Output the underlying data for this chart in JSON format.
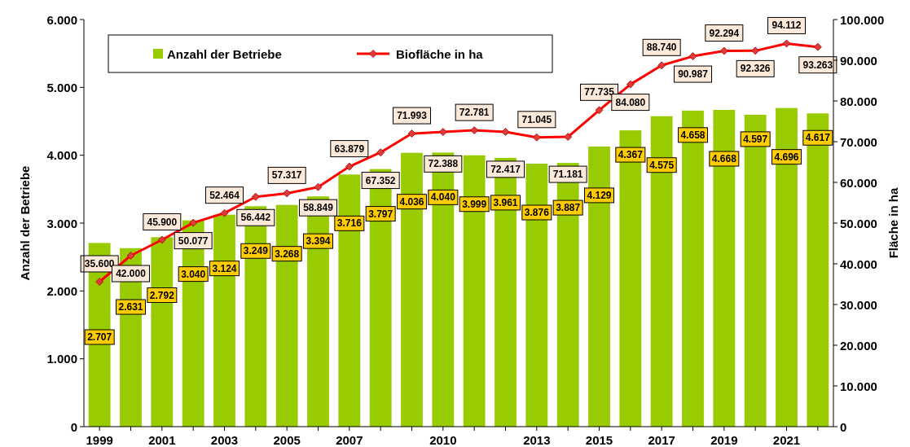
{
  "chart_data": {
    "type": "bar",
    "ylabel": "Anzahl der Betriebe",
    "y2label": "Fläche in ha",
    "legend": "top",
    "grid": false,
    "marker": "diamond",
    "categories": [
      "1999",
      null,
      "2001",
      null,
      "2003",
      null,
      "2005",
      null,
      "2007",
      null,
      null,
      "2010",
      null,
      null,
      "2013",
      null,
      "2015",
      null,
      "2017",
      null,
      "2019",
      null,
      "2021",
      null
    ],
    "ylim": [
      0,
      6000
    ],
    "yticks": [
      {
        "value": 0,
        "label": "0"
      },
      {
        "value": 1000,
        "label": "1.000"
      },
      {
        "value": 2000,
        "label": "2.000"
      },
      {
        "value": 3000,
        "label": "3.000"
      },
      {
        "value": 4000,
        "label": "4.000"
      },
      {
        "value": 5000,
        "label": "5.000"
      },
      {
        "value": 6000,
        "label": "6.000"
      }
    ],
    "y2lim": [
      0,
      100000
    ],
    "y2ticks": [
      {
        "value": 0,
        "label": "0"
      },
      {
        "value": 10000,
        "label": "10.000"
      },
      {
        "value": 20000,
        "label": "20.000"
      },
      {
        "value": 30000,
        "label": "30.000"
      },
      {
        "value": 40000,
        "label": "40.000"
      },
      {
        "value": 50000,
        "label": "50.000"
      },
      {
        "value": 60000,
        "label": "60.000"
      },
      {
        "value": 70000,
        "label": "70.000"
      },
      {
        "value": 80000,
        "label": "80.000"
      },
      {
        "value": 90000,
        "label": "90.000"
      },
      {
        "value": 100000,
        "label": "100.000"
      }
    ],
    "series": [
      {
        "name": "Anzahl der Betriebe",
        "color": "#99cc00",
        "values": [
          2707,
          2631,
          2792,
          3040,
          3124,
          3249,
          3268,
          3394,
          3716,
          3797,
          4036,
          4040,
          3999,
          3961,
          3876,
          3887,
          4129,
          4367,
          4575,
          4658,
          4668,
          4597,
          4696,
          4617
        ],
        "value_labels": [
          "2.707",
          "2.631",
          "2.792",
          "3.040",
          "3.124",
          "3.249",
          "3.268",
          "3.394",
          "3.716",
          "3.797",
          "4.036",
          "4.040",
          "3.999",
          "3.961",
          "3.876",
          "3.887",
          "4.129",
          "4.367",
          "4.575",
          "4.658",
          "4.668",
          "4.597",
          "4.696",
          "4.617"
        ]
      },
      {
        "name": "Biofläche in ha",
        "type": "line",
        "axis": "y2",
        "color": "#ff0000",
        "values": [
          35600,
          42000,
          45900,
          50077,
          52464,
          56442,
          57317,
          58849,
          63879,
          67352,
          71993,
          72388,
          72781,
          72417,
          71045,
          71181,
          77735,
          84080,
          88740,
          90987,
          92294,
          92326,
          94112,
          93263
        ],
        "value_labels": [
          "35.600",
          "42.000",
          "45.900",
          "50.077",
          "52.464",
          "56.442",
          "57.317",
          "58.849",
          "63.879",
          "67.352",
          "71.993",
          "72.388",
          "72.781",
          "72.417",
          "71.045",
          "71.181",
          "77.735",
          "84.080",
          "88.740",
          "90.987",
          "92.294",
          "92.326",
          "94.112",
          "93.263"
        ]
      }
    ]
  }
}
